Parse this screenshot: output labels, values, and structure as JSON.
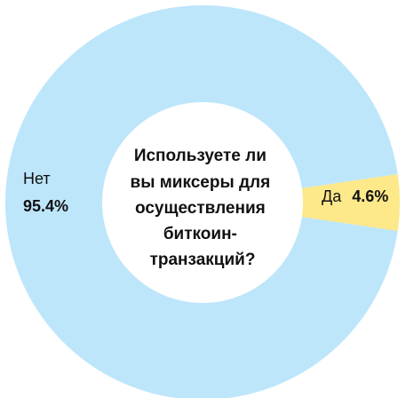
{
  "chart_data": {
    "type": "pie",
    "title": "Используете ли вы миксеры для осуществления биткоин-транзакций?",
    "title_lines": [
      "Используете ли",
      "вы миксеры для",
      "осуществления",
      "биткоин-",
      "транзакций?"
    ],
    "donut": true,
    "slices": [
      {
        "label": "Нет",
        "value": 95.4,
        "value_label": "95.4%",
        "color": "#bde6fb"
      },
      {
        "label": "Да",
        "value": 4.6,
        "value_label": "4.6%",
        "color": "#fde88a"
      }
    ]
  }
}
